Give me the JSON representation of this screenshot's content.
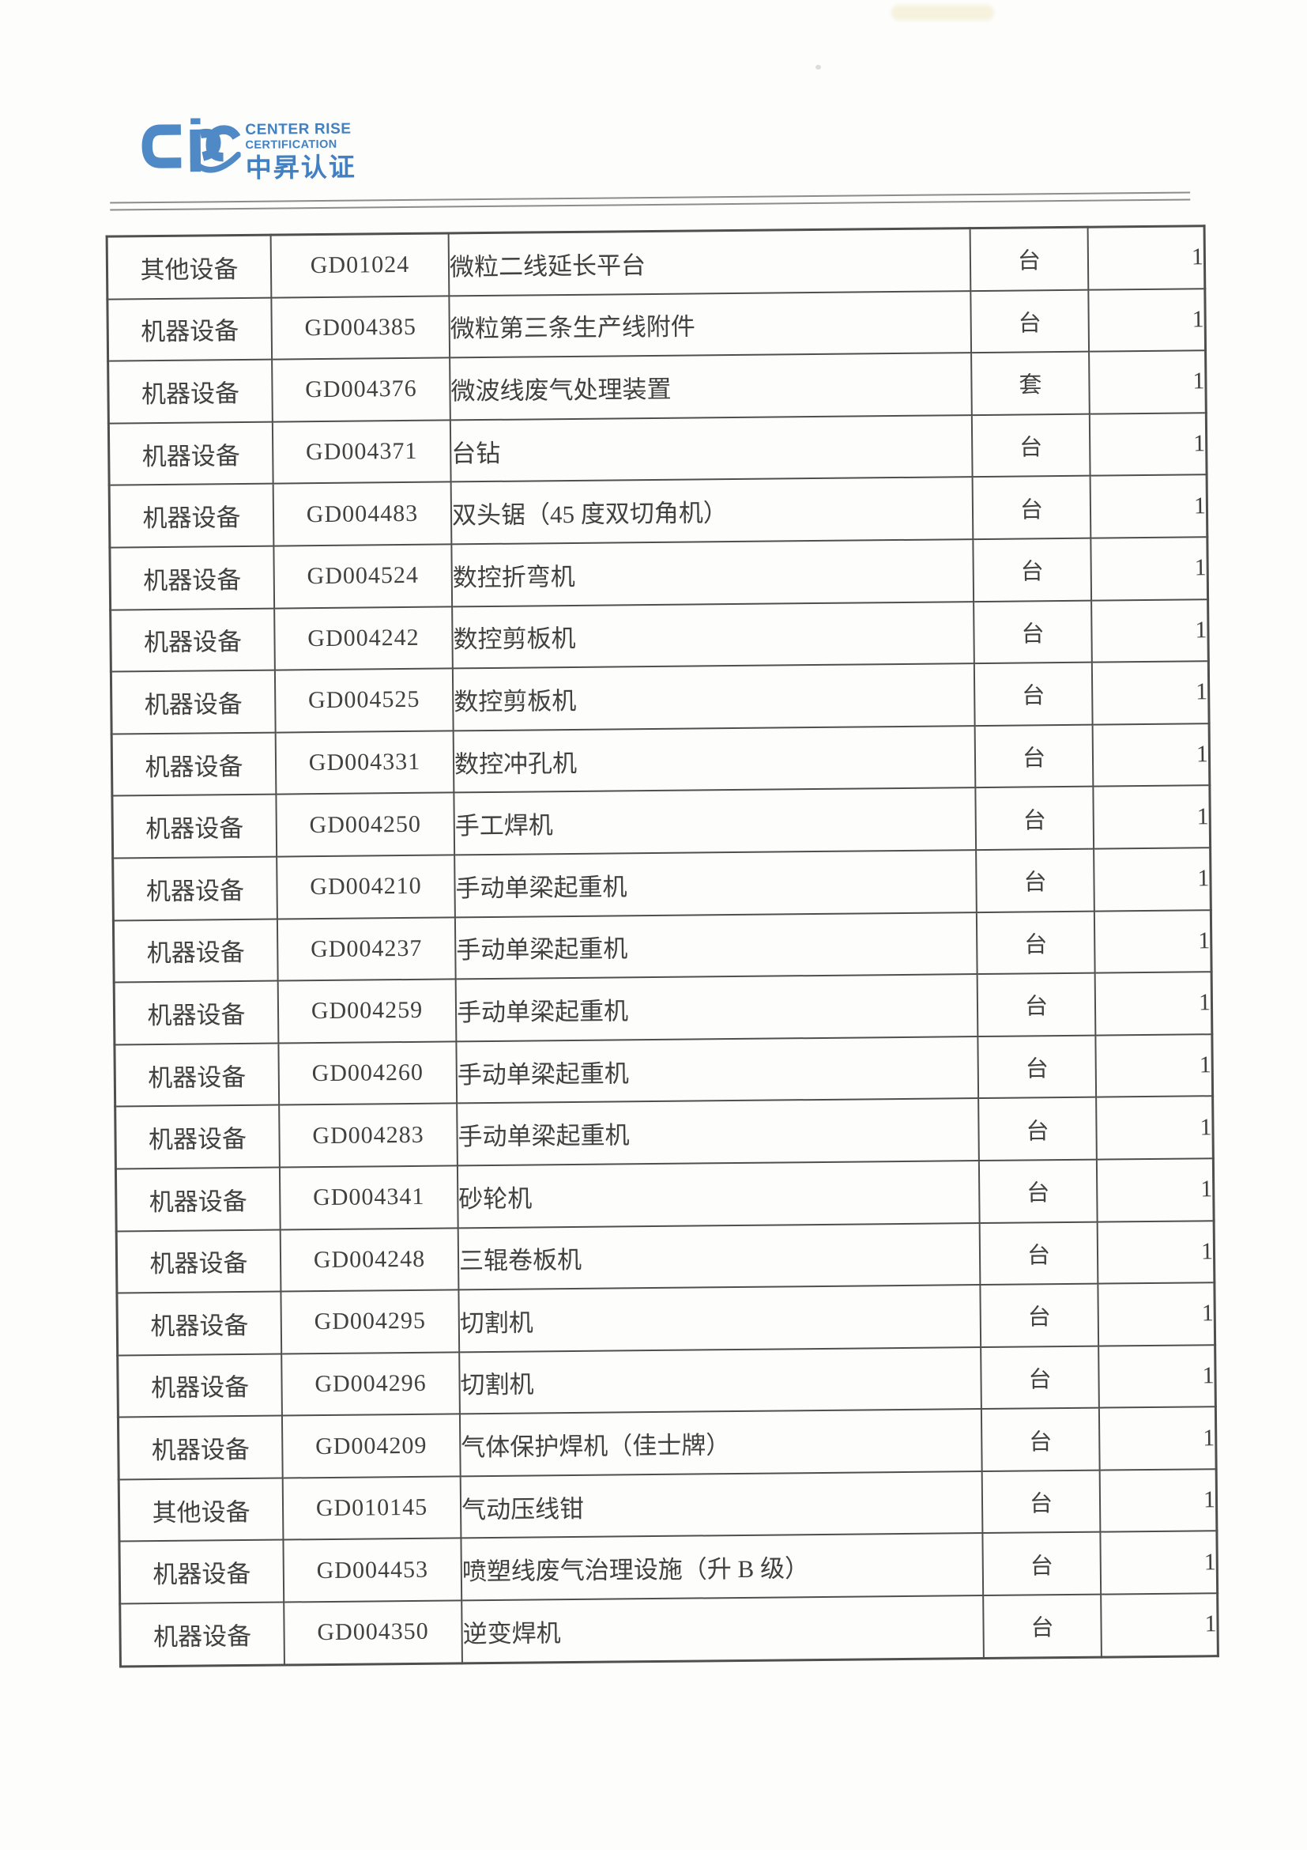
{
  "colors": {
    "page_bg": "#fdfdfc",
    "logo_blue": "#4181c3",
    "rule_gray": "#8c8c8c",
    "table_border": "#4f4f4f",
    "table_text": "#414141"
  },
  "logo": {
    "mark_icon": "crc-monogram-icon",
    "line1": "CENTER RISE",
    "line2": "CERTIFICATION",
    "line3": "中昇认证"
  },
  "table": {
    "columns": [
      "category",
      "code",
      "name",
      "unit",
      "quantity"
    ],
    "rows": [
      {
        "category": "其他设备",
        "code": "GD01024",
        "name": "微粒二线延长平台",
        "unit": "台",
        "quantity": "1"
      },
      {
        "category": "机器设备",
        "code": "GD004385",
        "name": "微粒第三条生产线附件",
        "unit": "台",
        "quantity": "1"
      },
      {
        "category": "机器设备",
        "code": "GD004376",
        "name": "微波线废气处理装置",
        "unit": "套",
        "quantity": "1"
      },
      {
        "category": "机器设备",
        "code": "GD004371",
        "name": "台钻",
        "unit": "台",
        "quantity": "1"
      },
      {
        "category": "机器设备",
        "code": "GD004483",
        "name": "双头锯（45 度双切角机）",
        "unit": "台",
        "quantity": "1"
      },
      {
        "category": "机器设备",
        "code": "GD004524",
        "name": "数控折弯机",
        "unit": "台",
        "quantity": "1"
      },
      {
        "category": "机器设备",
        "code": "GD004242",
        "name": "数控剪板机",
        "unit": "台",
        "quantity": "1"
      },
      {
        "category": "机器设备",
        "code": "GD004525",
        "name": "数控剪板机",
        "unit": "台",
        "quantity": "1"
      },
      {
        "category": "机器设备",
        "code": "GD004331",
        "name": "数控冲孔机",
        "unit": "台",
        "quantity": "1"
      },
      {
        "category": "机器设备",
        "code": "GD004250",
        "name": "手工焊机",
        "unit": "台",
        "quantity": "1"
      },
      {
        "category": "机器设备",
        "code": "GD004210",
        "name": "手动单梁起重机",
        "unit": "台",
        "quantity": "1"
      },
      {
        "category": "机器设备",
        "code": "GD004237",
        "name": "手动单梁起重机",
        "unit": "台",
        "quantity": "1"
      },
      {
        "category": "机器设备",
        "code": "GD004259",
        "name": "手动单梁起重机",
        "unit": "台",
        "quantity": "1"
      },
      {
        "category": "机器设备",
        "code": "GD004260",
        "name": "手动单梁起重机",
        "unit": "台",
        "quantity": "1"
      },
      {
        "category": "机器设备",
        "code": "GD004283",
        "name": "手动单梁起重机",
        "unit": "台",
        "quantity": "1"
      },
      {
        "category": "机器设备",
        "code": "GD004341",
        "name": "砂轮机",
        "unit": "台",
        "quantity": "1"
      },
      {
        "category": "机器设备",
        "code": "GD004248",
        "name": "三辊卷板机",
        "unit": "台",
        "quantity": "1"
      },
      {
        "category": "机器设备",
        "code": "GD004295",
        "name": "切割机",
        "unit": "台",
        "quantity": "1"
      },
      {
        "category": "机器设备",
        "code": "GD004296",
        "name": "切割机",
        "unit": "台",
        "quantity": "1"
      },
      {
        "category": "机器设备",
        "code": "GD004209",
        "name": "气体保护焊机（佳士牌）",
        "unit": "台",
        "quantity": "1"
      },
      {
        "category": "其他设备",
        "code": "GD010145",
        "name": "气动压线钳",
        "unit": "台",
        "quantity": "1"
      },
      {
        "category": "机器设备",
        "code": "GD004453",
        "name": "喷塑线废气治理设施（升 B 级）",
        "unit": "台",
        "quantity": "1"
      },
      {
        "category": "机器设备",
        "code": "GD004350",
        "name": "逆变焊机",
        "unit": "台",
        "quantity": "1"
      }
    ]
  }
}
